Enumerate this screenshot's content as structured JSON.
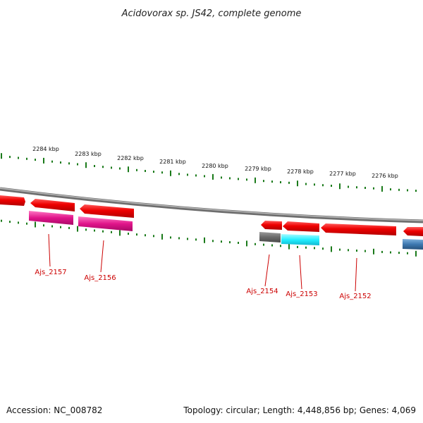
{
  "title": "Acidovorax sp. JS42, complete genome",
  "footer": {
    "accession": "Accession: NC_008782",
    "summary": "Topology: circular; Length: 4,448,856 bp; Genes: 4,069"
  },
  "colors": {
    "backbone": "#8a8a8a",
    "ticks": "#1a7a1a",
    "forward_gene": "#ee0000",
    "label": "#cc0000",
    "magenta": "#e0148a",
    "gray": "#6a6a6a",
    "cyan": "#22eeff",
    "steelblue": "#3d78b0"
  },
  "scale": {
    "unit": "kbp",
    "labels": [
      "2284 kbp",
      "2283 kbp",
      "2282 kbp",
      "2281 kbp",
      "2280 kbp",
      "2279 kbp",
      "2278 kbp",
      "2277 kbp",
      "2276 kbp"
    ]
  },
  "genes": [
    {
      "label": "Ajs_2157"
    },
    {
      "label": "Ajs_2156"
    },
    {
      "label": "Ajs_2154"
    },
    {
      "label": "Ajs_2153"
    },
    {
      "label": "Ajs_2152"
    }
  ]
}
